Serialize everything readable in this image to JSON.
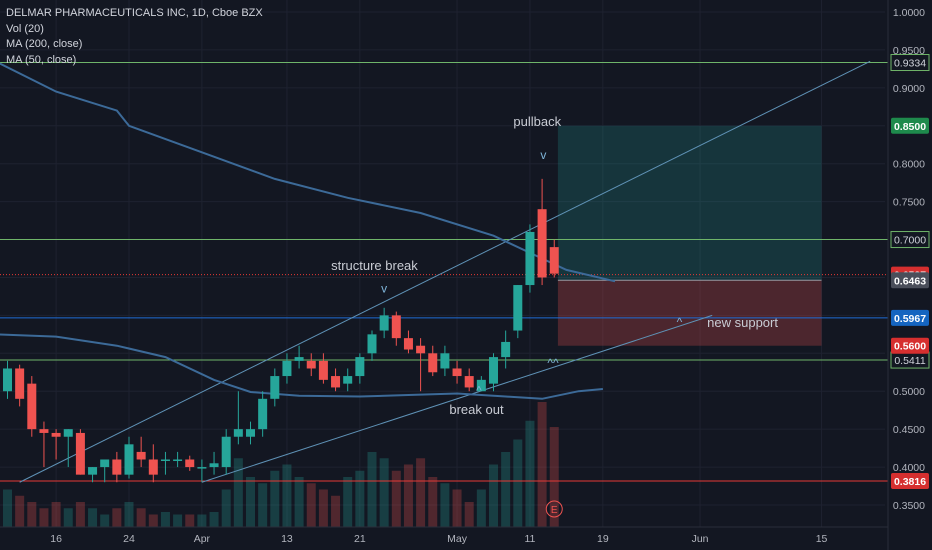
{
  "header": {
    "symbol": "DELMAR PHARMACEUTICALS INC, 1D, Cboe BZX",
    "volume": "Vol (20)",
    "ma200": "MA (200, close)",
    "ma50": "MA (50, close)"
  },
  "colors": {
    "background": "#131722",
    "up": "#26a69a",
    "down": "#ef5350",
    "ma": "#3c6a98",
    "grid": "#1e2230",
    "text": "#d1d4dc",
    "level_green": "#6fb56a",
    "level_red": "#e53935",
    "level_blue": "#1e6bd6",
    "trendline": "#5f92b6"
  },
  "chart_data": {
    "type": "candlestick",
    "y_axis": {
      "range": [
        0.34,
        1.01
      ],
      "ticks": [
        "1.0000",
        "0.9500",
        "0.9000",
        "0.8500",
        "0.8000",
        "0.7500",
        "0.7000",
        "0.6500",
        "0.6000",
        "0.5500",
        "0.5000",
        "0.4500",
        "0.4000",
        "0.3500"
      ]
    },
    "x_axis": {
      "ticks": [
        {
          "label": "16",
          "i": 4
        },
        {
          "label": "24",
          "i": 10
        },
        {
          "label": "Apr",
          "i": 16
        },
        {
          "label": "13",
          "i": 23
        },
        {
          "label": "21",
          "i": 29
        },
        {
          "label": "May",
          "i": 37
        },
        {
          "label": "11",
          "i": 43
        },
        {
          "label": "19",
          "i": 49
        },
        {
          "label": "Jun",
          "i": 57
        },
        {
          "label": "15",
          "i": 67
        }
      ]
    },
    "candles": [
      {
        "o": 0.5,
        "h": 0.54,
        "l": 0.49,
        "c": 0.53
      },
      {
        "o": 0.53,
        "h": 0.535,
        "l": 0.48,
        "c": 0.49
      },
      {
        "o": 0.51,
        "h": 0.52,
        "l": 0.44,
        "c": 0.45
      },
      {
        "o": 0.45,
        "h": 0.46,
        "l": 0.4,
        "c": 0.445
      },
      {
        "o": 0.445,
        "h": 0.45,
        "l": 0.41,
        "c": 0.44
      },
      {
        "o": 0.44,
        "h": 0.45,
        "l": 0.4,
        "c": 0.45
      },
      {
        "o": 0.445,
        "h": 0.45,
        "l": 0.39,
        "c": 0.39
      },
      {
        "o": 0.39,
        "h": 0.4,
        "l": 0.38,
        "c": 0.4
      },
      {
        "o": 0.4,
        "h": 0.41,
        "l": 0.38,
        "c": 0.41
      },
      {
        "o": 0.41,
        "h": 0.42,
        "l": 0.38,
        "c": 0.39
      },
      {
        "o": 0.39,
        "h": 0.44,
        "l": 0.385,
        "c": 0.43
      },
      {
        "o": 0.42,
        "h": 0.44,
        "l": 0.4,
        "c": 0.41
      },
      {
        "o": 0.41,
        "h": 0.43,
        "l": 0.38,
        "c": 0.39
      },
      {
        "o": 0.41,
        "h": 0.42,
        "l": 0.39,
        "c": 0.41
      },
      {
        "o": 0.41,
        "h": 0.42,
        "l": 0.4,
        "c": 0.41
      },
      {
        "o": 0.41,
        "h": 0.415,
        "l": 0.395,
        "c": 0.4
      },
      {
        "o": 0.4,
        "h": 0.41,
        "l": 0.38,
        "c": 0.4
      },
      {
        "o": 0.4,
        "h": 0.42,
        "l": 0.39,
        "c": 0.405
      },
      {
        "o": 0.4,
        "h": 0.45,
        "l": 0.39,
        "c": 0.44
      },
      {
        "o": 0.44,
        "h": 0.5,
        "l": 0.43,
        "c": 0.45
      },
      {
        "o": 0.44,
        "h": 0.46,
        "l": 0.43,
        "c": 0.45
      },
      {
        "o": 0.45,
        "h": 0.5,
        "l": 0.44,
        "c": 0.49
      },
      {
        "o": 0.49,
        "h": 0.53,
        "l": 0.48,
        "c": 0.52
      },
      {
        "o": 0.52,
        "h": 0.55,
        "l": 0.51,
        "c": 0.54
      },
      {
        "o": 0.54,
        "h": 0.56,
        "l": 0.53,
        "c": 0.545
      },
      {
        "o": 0.54,
        "h": 0.55,
        "l": 0.52,
        "c": 0.53
      },
      {
        "o": 0.54,
        "h": 0.55,
        "l": 0.51,
        "c": 0.515
      },
      {
        "o": 0.52,
        "h": 0.53,
        "l": 0.5,
        "c": 0.505
      },
      {
        "o": 0.51,
        "h": 0.53,
        "l": 0.5,
        "c": 0.52
      },
      {
        "o": 0.52,
        "h": 0.55,
        "l": 0.51,
        "c": 0.545
      },
      {
        "o": 0.55,
        "h": 0.58,
        "l": 0.54,
        "c": 0.575
      },
      {
        "o": 0.58,
        "h": 0.61,
        "l": 0.57,
        "c": 0.6
      },
      {
        "o": 0.6,
        "h": 0.605,
        "l": 0.56,
        "c": 0.57
      },
      {
        "o": 0.57,
        "h": 0.58,
        "l": 0.55,
        "c": 0.555
      },
      {
        "o": 0.56,
        "h": 0.57,
        "l": 0.5,
        "c": 0.55
      },
      {
        "o": 0.55,
        "h": 0.56,
        "l": 0.52,
        "c": 0.525
      },
      {
        "o": 0.53,
        "h": 0.56,
        "l": 0.52,
        "c": 0.55
      },
      {
        "o": 0.53,
        "h": 0.54,
        "l": 0.51,
        "c": 0.52
      },
      {
        "o": 0.52,
        "h": 0.53,
        "l": 0.5,
        "c": 0.505
      },
      {
        "o": 0.5,
        "h": 0.52,
        "l": 0.5,
        "c": 0.515
      },
      {
        "o": 0.51,
        "h": 0.55,
        "l": 0.5,
        "c": 0.545
      },
      {
        "o": 0.545,
        "h": 0.58,
        "l": 0.53,
        "c": 0.565
      },
      {
        "o": 0.58,
        "h": 0.64,
        "l": 0.57,
        "c": 0.64
      },
      {
        "o": 0.64,
        "h": 0.72,
        "l": 0.63,
        "c": 0.71
      },
      {
        "o": 0.74,
        "h": 0.78,
        "l": 0.64,
        "c": 0.65
      },
      {
        "o": 0.69,
        "h": 0.7,
        "l": 0.65,
        "c": 0.655
      }
    ],
    "volume_bars": [
      0.3,
      0.25,
      0.2,
      0.15,
      0.2,
      0.15,
      0.2,
      0.15,
      0.1,
      0.15,
      0.2,
      0.15,
      0.1,
      0.12,
      0.1,
      0.1,
      0.1,
      0.12,
      0.3,
      0.55,
      0.4,
      0.35,
      0.45,
      0.5,
      0.4,
      0.35,
      0.3,
      0.25,
      0.4,
      0.45,
      0.6,
      0.55,
      0.45,
      0.5,
      0.55,
      0.4,
      0.35,
      0.3,
      0.2,
      0.3,
      0.5,
      0.6,
      0.7,
      0.85,
      1.0,
      0.8
    ],
    "ma_lines": [
      {
        "name": "MA (200, close)",
        "points": [
          [
            -1,
            0.935
          ],
          [
            4,
            0.895
          ],
          [
            9,
            0.87
          ],
          [
            10,
            0.85
          ],
          [
            16,
            0.815
          ],
          [
            22,
            0.78
          ],
          [
            28,
            0.755
          ],
          [
            34,
            0.735
          ],
          [
            40,
            0.705
          ],
          [
            46,
            0.66
          ],
          [
            50,
            0.645
          ]
        ]
      },
      {
        "name": "MA (50, close)",
        "points": [
          [
            -1,
            0.575
          ],
          [
            4,
            0.572
          ],
          [
            9,
            0.56
          ],
          [
            13,
            0.545
          ],
          [
            17,
            0.515
          ],
          [
            20,
            0.499
          ],
          [
            24,
            0.494
          ],
          [
            29,
            0.493
          ],
          [
            33,
            0.495
          ],
          [
            37,
            0.497
          ],
          [
            41,
            0.493
          ],
          [
            44,
            0.49
          ],
          [
            47,
            0.5
          ],
          [
            49,
            0.503
          ]
        ]
      }
    ],
    "price_levels": [
      {
        "value": 0.9334,
        "label": "0.9334",
        "kind": "green"
      },
      {
        "value": 0.7,
        "label": "0.7000",
        "kind": "green"
      },
      {
        "value": 0.6537,
        "label": "0.6537",
        "kind": "red-dotted"
      },
      {
        "value": 0.5967,
        "label": "0.5967",
        "kind": "blue"
      },
      {
        "value": 0.5411,
        "label": "0.5411",
        "kind": "green"
      },
      {
        "value": 0.3816,
        "label": "0.3816",
        "kind": "red"
      }
    ],
    "axis_tags": [
      {
        "value": 0.85,
        "label": "0.8500",
        "kind": "green"
      },
      {
        "value": 0.6463,
        "label": "0.6463",
        "kind": "gray"
      },
      {
        "value": 0.56,
        "label": "0.5600",
        "kind": "red"
      }
    ],
    "position": {
      "entry": 0.6463,
      "target": 0.85,
      "stop": 0.56,
      "start": 45.3,
      "end": 67
    },
    "trendlines": [
      {
        "from": [
          1,
          0.38
        ],
        "to": [
          71,
          0.935
        ]
      },
      {
        "from": [
          16,
          0.38
        ],
        "to": [
          58,
          0.6
        ]
      }
    ],
    "annotations": [
      {
        "text": "pullback",
        "i": 43.6,
        "y": 0.85
      },
      {
        "text": "structure break",
        "i": 30.2,
        "y": 0.66
      },
      {
        "text": "new support",
        "i": 60.5,
        "y": 0.585
      },
      {
        "text": "break out",
        "i": 38.6,
        "y": 0.47
      }
    ],
    "markers": [
      {
        "symbol": "v",
        "i": 44.1,
        "y": 0.806
      },
      {
        "symbol": "v",
        "i": 31,
        "y": 0.63
      },
      {
        "symbol": "^",
        "i": 38.8,
        "y": 0.496
      },
      {
        "symbol": "^",
        "i": 55.3,
        "y": 0.586
      },
      {
        "symbol": "^^",
        "i": 44.9,
        "y": 0.532
      }
    ],
    "earnings_marker": {
      "label": "E",
      "i": 45
    }
  }
}
